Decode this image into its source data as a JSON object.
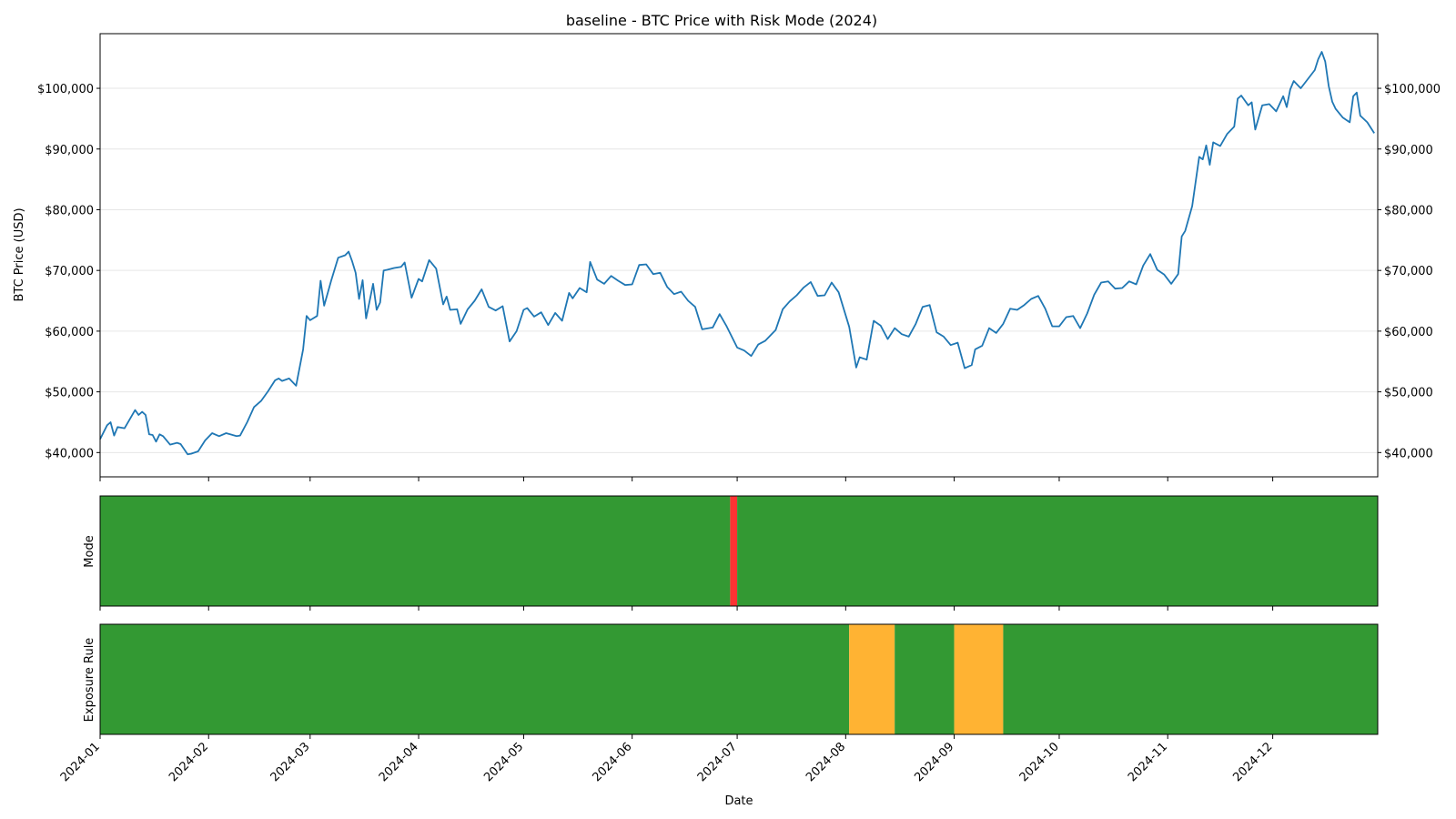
{
  "chart_data": [
    {
      "type": "line",
      "title": "baseline - BTC Price with Risk Mode (2024)",
      "ylabel": "BTC Price (USD)",
      "xlabel": "",
      "x_range": [
        "2024-01-01",
        "2024-12-31"
      ],
      "ylim": [
        36000,
        109000
      ],
      "y_ticks": [
        40000,
        50000,
        60000,
        70000,
        80000,
        90000,
        100000
      ],
      "y_tick_labels": [
        "$40,000",
        "$50,000",
        "$60,000",
        "$70,000",
        "$80,000",
        "$90,000",
        "$100,000"
      ],
      "right_axis_mirror": true,
      "grid": "horizontal",
      "line_color": "#1f77b4",
      "series": [
        {
          "x": [
            "2024-01-01",
            "2024-01-03",
            "2024-01-04",
            "2024-01-05",
            "2024-01-06",
            "2024-01-08",
            "2024-01-11",
            "2024-01-12",
            "2024-01-13",
            "2024-01-14",
            "2024-01-15",
            "2024-01-16",
            "2024-01-17",
            "2024-01-18",
            "2024-01-19",
            "2024-01-21",
            "2024-01-23",
            "2024-01-24",
            "2024-01-26",
            "2024-01-27",
            "2024-01-29",
            "2024-01-31",
            "2024-02-02",
            "2024-02-04",
            "2024-02-06",
            "2024-02-09",
            "2024-02-10",
            "2024-02-12",
            "2024-02-14",
            "2024-02-16",
            "2024-02-18",
            "2024-02-20",
            "2024-02-21",
            "2024-02-22",
            "2024-02-24",
            "2024-02-26",
            "2024-02-28",
            "2024-02-29",
            "2024-03-01",
            "2024-03-03",
            "2024-03-04",
            "2024-03-05",
            "2024-03-06",
            "2024-03-07",
            "2024-03-09",
            "2024-03-11",
            "2024-03-12",
            "2024-03-13",
            "2024-03-14",
            "2024-03-15",
            "2024-03-16",
            "2024-03-17",
            "2024-03-19",
            "2024-03-20",
            "2024-03-21",
            "2024-03-22",
            "2024-03-23",
            "2024-03-25",
            "2024-03-27",
            "2024-03-28",
            "2024-03-30",
            "2024-04-01",
            "2024-04-02",
            "2024-04-04",
            "2024-04-06",
            "2024-04-08",
            "2024-04-09",
            "2024-04-10",
            "2024-04-12",
            "2024-04-13",
            "2024-04-15",
            "2024-04-17",
            "2024-04-19",
            "2024-04-21",
            "2024-04-23",
            "2024-04-25",
            "2024-04-27",
            "2024-04-29",
            "2024-05-01",
            "2024-05-02",
            "2024-05-04",
            "2024-05-06",
            "2024-05-08",
            "2024-05-10",
            "2024-05-12",
            "2024-05-14",
            "2024-05-15",
            "2024-05-17",
            "2024-05-19",
            "2024-05-20",
            "2024-05-22",
            "2024-05-24",
            "2024-05-26",
            "2024-05-28",
            "2024-05-30",
            "2024-06-01",
            "2024-06-03",
            "2024-06-05",
            "2024-06-07",
            "2024-06-09",
            "2024-06-11",
            "2024-06-13",
            "2024-06-15",
            "2024-06-17",
            "2024-06-19",
            "2024-06-21",
            "2024-06-24",
            "2024-06-26",
            "2024-06-28",
            "2024-07-01",
            "2024-07-03",
            "2024-07-05",
            "2024-07-07",
            "2024-07-09",
            "2024-07-12",
            "2024-07-14",
            "2024-07-16",
            "2024-07-18",
            "2024-07-20",
            "2024-07-22",
            "2024-07-24",
            "2024-07-26",
            "2024-07-28",
            "2024-07-30",
            "2024-08-02",
            "2024-08-04",
            "2024-08-05",
            "2024-08-07",
            "2024-08-09",
            "2024-08-11",
            "2024-08-13",
            "2024-08-15",
            "2024-08-17",
            "2024-08-19",
            "2024-08-21",
            "2024-08-23",
            "2024-08-25",
            "2024-08-27",
            "2024-08-29",
            "2024-08-31",
            "2024-09-02",
            "2024-09-04",
            "2024-09-06",
            "2024-09-07",
            "2024-09-09",
            "2024-09-11",
            "2024-09-13",
            "2024-09-15",
            "2024-09-17",
            "2024-09-19",
            "2024-09-21",
            "2024-09-23",
            "2024-09-25",
            "2024-09-27",
            "2024-09-29",
            "2024-10-01",
            "2024-10-03",
            "2024-10-05",
            "2024-10-07",
            "2024-10-09",
            "2024-10-11",
            "2024-10-13",
            "2024-10-15",
            "2024-10-17",
            "2024-10-19",
            "2024-10-21",
            "2024-10-23",
            "2024-10-25",
            "2024-10-27",
            "2024-10-29",
            "2024-10-31",
            "2024-11-02",
            "2024-11-04",
            "2024-11-05",
            "2024-11-06",
            "2024-11-08",
            "2024-11-10",
            "2024-11-11",
            "2024-11-12",
            "2024-11-13",
            "2024-11-14",
            "2024-11-16",
            "2024-11-18",
            "2024-11-20",
            "2024-11-21",
            "2024-11-22",
            "2024-11-24",
            "2024-11-25",
            "2024-11-26",
            "2024-11-28",
            "2024-11-30",
            "2024-12-02",
            "2024-12-04",
            "2024-12-05",
            "2024-12-06",
            "2024-12-07",
            "2024-12-09",
            "2024-12-11",
            "2024-12-13",
            "2024-12-14",
            "2024-12-15",
            "2024-12-16",
            "2024-12-17",
            "2024-12-18",
            "2024-12-19",
            "2024-12-21",
            "2024-12-23",
            "2024-12-24",
            "2024-12-25",
            "2024-12-26",
            "2024-12-28",
            "2024-12-30"
          ],
          "y": [
            42200,
            44500,
            45000,
            42800,
            44200,
            44000,
            47000,
            46200,
            46700,
            46200,
            43000,
            42900,
            41800,
            43000,
            42700,
            41300,
            41600,
            41400,
            39700,
            39800,
            40200,
            42000,
            43200,
            42700,
            43200,
            42700,
            42800,
            45000,
            47500,
            48500,
            50100,
            51900,
            52200,
            51800,
            52200,
            51000,
            57000,
            62500,
            61800,
            62500,
            68300,
            64200,
            66200,
            68300,
            72100,
            72500,
            73100,
            71500,
            69600,
            65300,
            68400,
            62100,
            67800,
            63500,
            64700,
            70000,
            70100,
            70400,
            70600,
            71300,
            65500,
            68600,
            68200,
            71700,
            70300,
            64400,
            65700,
            63500,
            63600,
            61200,
            63600,
            65000,
            66900,
            64000,
            63400,
            64100,
            58300,
            60000,
            63500,
            63800,
            62400,
            63100,
            61000,
            63000,
            61700,
            66300,
            65400,
            67100,
            66400,
            71400,
            68500,
            67800,
            69100,
            68300,
            67600,
            67700,
            70900,
            71000,
            69400,
            69600,
            67300,
            66100,
            66500,
            65000,
            64000,
            60300,
            60600,
            62800,
            60800,
            57300,
            56800,
            55900,
            57800,
            58400,
            60200,
            63600,
            64900,
            65900,
            67200,
            68100,
            65800,
            65900,
            68000,
            66400,
            60700,
            54000,
            55700,
            55300,
            61700,
            60900,
            58700,
            60500,
            59500,
            59100,
            61200,
            64000,
            64300,
            59800,
            59100,
            57700,
            58100,
            53900,
            54400,
            57000,
            57600,
            60500,
            59700,
            61200,
            63700,
            63500,
            64300,
            65300,
            65800,
            63700,
            60800,
            60800,
            62300,
            62500,
            60500,
            62900,
            66000,
            68000,
            68200,
            67000,
            67100,
            68200,
            67700,
            70800,
            72700,
            70100,
            69300,
            67800,
            69400,
            75600,
            76500,
            80600,
            88700,
            88300,
            90600,
            87400,
            91100,
            90500,
            92500,
            93700,
            98300,
            98800,
            97200,
            97700,
            93200,
            97200,
            97400,
            96200,
            98700,
            96900,
            99800,
            101200,
            100000,
            101500,
            103000,
            104800,
            106000,
            104400,
            100400,
            97800,
            96600,
            95200,
            94400,
            98700,
            99300,
            95500,
            94400,
            92600
          ]
        }
      ]
    },
    {
      "type": "band",
      "ylabel": "Mode",
      "colors": {
        "normal": "#339933",
        "alert": "#ff3333"
      },
      "segments": [
        {
          "start": "2024-01-01",
          "end": "2024-06-29",
          "state": "normal"
        },
        {
          "start": "2024-06-29",
          "end": "2024-07-01",
          "state": "alert"
        },
        {
          "start": "2024-07-01",
          "end": "2024-12-31",
          "state": "normal"
        }
      ]
    },
    {
      "type": "band",
      "ylabel": "Exposure Rule",
      "xlabel": "Date",
      "colors": {
        "normal": "#339933",
        "reduced": "#ffb333"
      },
      "x_ticks": [
        "2024-01",
        "2024-02",
        "2024-03",
        "2024-04",
        "2024-05",
        "2024-06",
        "2024-07",
        "2024-08",
        "2024-09",
        "2024-10",
        "2024-11",
        "2024-12"
      ],
      "segments": [
        {
          "start": "2024-01-01",
          "end": "2024-08-02",
          "state": "normal"
        },
        {
          "start": "2024-08-02",
          "end": "2024-08-15",
          "state": "reduced"
        },
        {
          "start": "2024-08-15",
          "end": "2024-09-01",
          "state": "normal"
        },
        {
          "start": "2024-09-01",
          "end": "2024-09-15",
          "state": "reduced"
        },
        {
          "start": "2024-09-15",
          "end": "2024-12-31",
          "state": "normal"
        }
      ]
    }
  ]
}
